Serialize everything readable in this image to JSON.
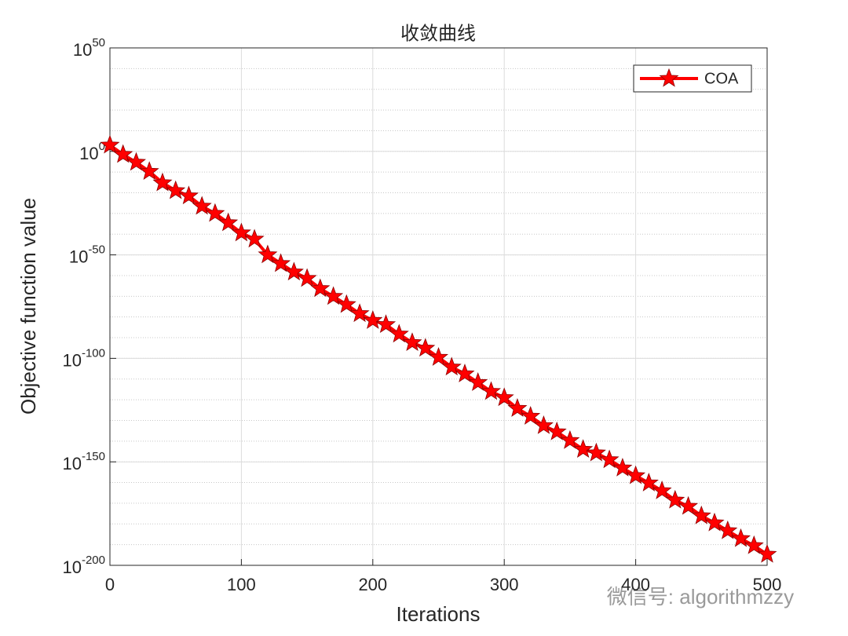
{
  "chart_data": {
    "type": "line",
    "title": "收敛曲线",
    "x_label": "Iterations",
    "y_label": "Objective function value",
    "watermark": "微信号: algorithmzzy",
    "log_y": true,
    "grid": true,
    "minor_grid": true,
    "legend_position": "top-right",
    "xlim": [
      0,
      500
    ],
    "xticks": [
      0,
      100,
      200,
      300,
      400,
      500
    ],
    "ylim": [
      1e-200,
      1e+50
    ],
    "yticks": [
      {
        "value": 1e+50,
        "label": "10",
        "sup": "50"
      },
      {
        "value": 1,
        "label": "10",
        "sup": "0"
      },
      {
        "value": 1e-50,
        "label": "10",
        "sup": "-50"
      },
      {
        "value": 1e-100,
        "label": "10",
        "sup": "-100"
      },
      {
        "value": 1e-150,
        "label": "10",
        "sup": "-150"
      },
      {
        "value": 1e-200,
        "label": "10",
        "sup": "-200"
      }
    ],
    "x": [
      0,
      10,
      20,
      30,
      40,
      50,
      60,
      70,
      80,
      90,
      100,
      110,
      120,
      130,
      140,
      150,
      160,
      170,
      180,
      190,
      200,
      210,
      220,
      230,
      240,
      250,
      260,
      270,
      280,
      290,
      300,
      310,
      320,
      330,
      340,
      350,
      360,
      370,
      380,
      390,
      400,
      410,
      420,
      430,
      440,
      450,
      460,
      470,
      480,
      490,
      500
    ],
    "series": [
      {
        "name": "COA",
        "color": "#ff0000",
        "values": [
          1000.0,
          0.03,
          5e-06,
          2e-10,
          6e-16,
          1e-19,
          3e-22,
          3e-27,
          1e-30,
          3e-35,
          4e-40,
          4e-43,
          1e-50,
          6e-55,
          5e-59,
          4e-62,
          5e-67,
          8e-71,
          1e-74,
          4e-79,
          2e-82,
          2e-84,
          5e-89,
          4e-93,
          8e-96,
          3e-100,
          6e-105,
          3e-108,
          2e-112,
          1e-116,
          1e-119,
          6e-125,
          1e-128,
          3e-133,
          3e-136,
          2e-140,
          1e-144,
          2e-146,
          1e-149,
          1e-153,
          2e-157,
          6e-161,
          1e-164,
          3e-169,
          3e-172,
          8e-177,
          3e-180,
          5e-184,
          8e-188,
          3e-191,
          2e-195
        ]
      }
    ]
  }
}
